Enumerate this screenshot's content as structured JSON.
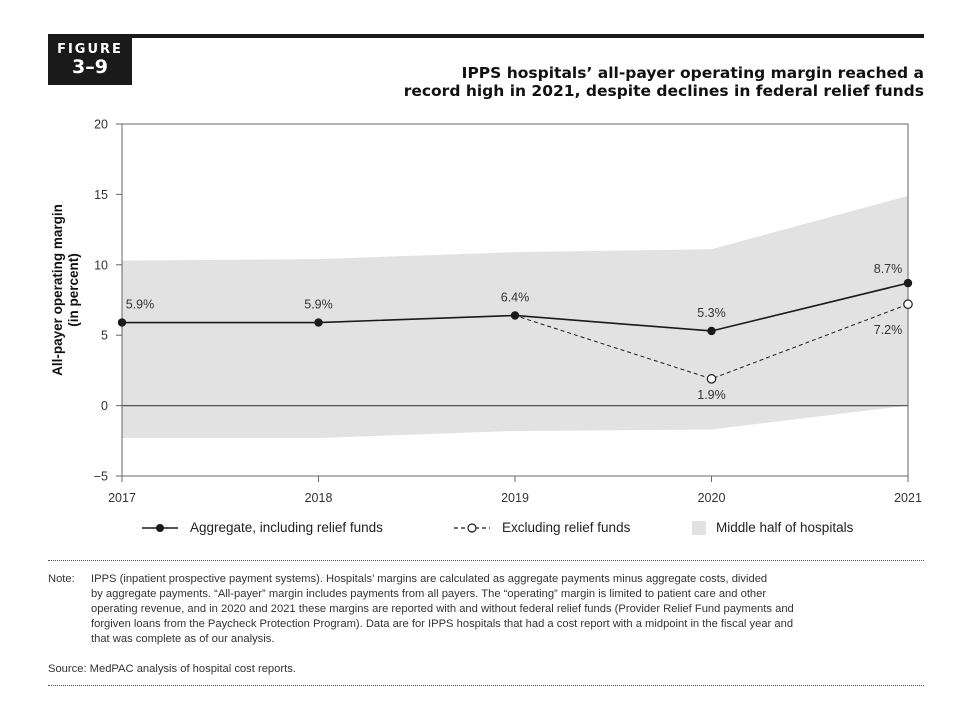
{
  "figure": {
    "label": "FIGURE",
    "number": "3–9"
  },
  "title_lines": [
    "IPPS hospitals’ all-payer operating margin reached a",
    "record high in 2021, despite declines in federal relief funds"
  ],
  "chart_data": {
    "type": "line",
    "ylabel_lines": [
      "All-payer operating margin",
      "(in percent)"
    ],
    "x": [
      "2017",
      "2018",
      "2019",
      "2020",
      "2021"
    ],
    "ylim": [
      -5,
      20
    ],
    "yticks": [
      "20",
      "15",
      "10",
      "5",
      "0",
      "−5"
    ],
    "ytick_values": [
      20,
      15,
      10,
      5,
      0,
      -5
    ],
    "series": [
      {
        "name": "Aggregate, including relief funds",
        "values": [
          5.9,
          5.9,
          6.4,
          5.3,
          8.7
        ],
        "labels": [
          "5.9%",
          "5.9%",
          "6.4%",
          "5.3%",
          "8.7%"
        ],
        "style": "solid",
        "marker": "filled"
      },
      {
        "name": "Excluding relief funds",
        "values": [
          5.9,
          5.9,
          6.4,
          1.9,
          7.2
        ],
        "labels": [
          "",
          "",
          "",
          "1.9%",
          "7.2%"
        ],
        "style": "dashed",
        "marker": "open"
      }
    ],
    "band": {
      "name": "Middle half of hospitals",
      "upper": [
        10.3,
        10.4,
        10.9,
        11.1,
        14.9
      ],
      "lower": [
        -2.3,
        -2.3,
        -1.8,
        -1.7,
        0.0
      ],
      "color": "#e2e2e3"
    },
    "grid": false
  },
  "legend": {
    "aggregate": "Aggregate, including relief funds",
    "excluding": "Excluding relief funds",
    "band": "Middle half of hospitals"
  },
  "note": {
    "label": "Note:",
    "lines": [
      "IPPS (inpatient prospective payment systems). Hospitals’ margins are calculated as aggregate payments minus aggregate costs, divided",
      "by aggregate payments. “All-payer” margin includes payments from all payers. The “operating” margin is limited to patient care and other",
      "operating revenue, and in 2020 and 2021 these margins are reported with and without federal relief funds (Provider Relief Fund payments and",
      "forgiven loans from the Paycheck Protection Program). Data are for IPPS hospitals that had a cost report with a midpoint in the fiscal year and",
      "that was complete as of our analysis."
    ]
  },
  "source": "Source: MedPAC analysis of hospital cost reports."
}
